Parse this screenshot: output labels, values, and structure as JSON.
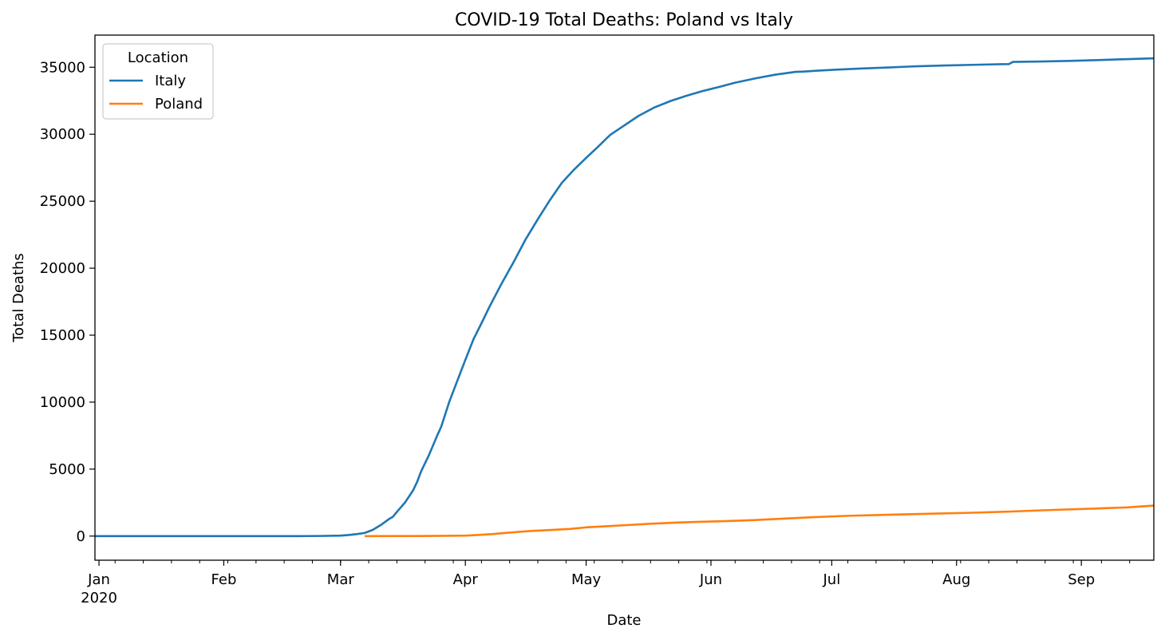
{
  "chart_data": {
    "type": "line",
    "title": "COVID-19 Total Deaths: Poland vs Italy",
    "xlabel": "Date",
    "ylabel": "Total Deaths",
    "xlim": [
      "2019-12-31",
      "2020-09-19"
    ],
    "ylim": [
      -1800,
      37400
    ],
    "grid": false,
    "legend": {
      "title": "Location",
      "placement": "top-left"
    },
    "x_ticks": [
      {
        "date": "2020-01-01",
        "label": "Jan",
        "sublabel": "2020"
      },
      {
        "date": "2020-02-01",
        "label": "Feb",
        "sublabel": ""
      },
      {
        "date": "2020-03-01",
        "label": "Mar",
        "sublabel": ""
      },
      {
        "date": "2020-04-01",
        "label": "Apr",
        "sublabel": ""
      },
      {
        "date": "2020-05-01",
        "label": "May",
        "sublabel": ""
      },
      {
        "date": "2020-06-01",
        "label": "Jun",
        "sublabel": ""
      },
      {
        "date": "2020-07-01",
        "label": "Jul",
        "sublabel": ""
      },
      {
        "date": "2020-08-01",
        "label": "Aug",
        "sublabel": ""
      },
      {
        "date": "2020-09-01",
        "label": "Sep",
        "sublabel": ""
      }
    ],
    "y_ticks": [
      0,
      5000,
      10000,
      15000,
      20000,
      25000,
      30000,
      35000
    ],
    "series": [
      {
        "name": "Italy",
        "color": "#1f77b4",
        "points": [
          [
            "2019-12-31",
            0
          ],
          [
            "2020-02-20",
            0
          ],
          [
            "2020-02-25",
            10
          ],
          [
            "2020-03-01",
            34
          ],
          [
            "2020-03-03",
            79
          ],
          [
            "2020-03-05",
            148
          ],
          [
            "2020-03-07",
            233
          ],
          [
            "2020-03-09",
            463
          ],
          [
            "2020-03-11",
            827
          ],
          [
            "2020-03-13",
            1266
          ],
          [
            "2020-03-14",
            1441
          ],
          [
            "2020-03-15",
            1809
          ],
          [
            "2020-03-17",
            2503
          ],
          [
            "2020-03-19",
            3405
          ],
          [
            "2020-03-20",
            4032
          ],
          [
            "2020-03-21",
            4825
          ],
          [
            "2020-03-23",
            6077
          ],
          [
            "2020-03-25",
            7503
          ],
          [
            "2020-03-26",
            8165
          ],
          [
            "2020-03-28",
            10023
          ],
          [
            "2020-03-30",
            11591
          ],
          [
            "2020-04-01",
            13155
          ],
          [
            "2020-04-03",
            14681
          ],
          [
            "2020-04-05",
            15887
          ],
          [
            "2020-04-07",
            17127
          ],
          [
            "2020-04-10",
            18849
          ],
          [
            "2020-04-13",
            20465
          ],
          [
            "2020-04-16",
            22170
          ],
          [
            "2020-04-19",
            23660
          ],
          [
            "2020-04-22",
            25085
          ],
          [
            "2020-04-25",
            26384
          ],
          [
            "2020-04-28",
            27359
          ],
          [
            "2020-05-01",
            28236
          ],
          [
            "2020-05-04",
            29079
          ],
          [
            "2020-05-07",
            29958
          ],
          [
            "2020-05-10",
            30560
          ],
          [
            "2020-05-14",
            31368
          ],
          [
            "2020-05-18",
            32007
          ],
          [
            "2020-05-22",
            32486
          ],
          [
            "2020-05-26",
            32877
          ],
          [
            "2020-05-30",
            33229
          ],
          [
            "2020-06-03",
            33530
          ],
          [
            "2020-06-07",
            33846
          ],
          [
            "2020-06-12",
            34167
          ],
          [
            "2020-06-17",
            34448
          ],
          [
            "2020-06-22",
            34657
          ],
          [
            "2020-06-24",
            34678
          ],
          [
            "2020-06-27",
            34738
          ],
          [
            "2020-07-02",
            34818
          ],
          [
            "2020-07-08",
            34899
          ],
          [
            "2020-07-15",
            34984
          ],
          [
            "2020-07-22",
            35073
          ],
          [
            "2020-07-29",
            35132
          ],
          [
            "2020-08-05",
            35181
          ],
          [
            "2020-08-12",
            35231
          ],
          [
            "2020-08-14",
            35234
          ],
          [
            "2020-08-15",
            35400
          ],
          [
            "2020-08-22",
            35430
          ],
          [
            "2020-08-29",
            35473
          ],
          [
            "2020-09-05",
            35534
          ],
          [
            "2020-09-12",
            35603
          ],
          [
            "2020-09-19",
            35668
          ]
        ]
      },
      {
        "name": "Poland",
        "color": "#ff7f0e",
        "points": [
          [
            "2020-03-07",
            0
          ],
          [
            "2020-03-20",
            5
          ],
          [
            "2020-03-27",
            23
          ],
          [
            "2020-04-01",
            33
          ],
          [
            "2020-04-04",
            79
          ],
          [
            "2020-04-08",
            153
          ],
          [
            "2020-04-12",
            263
          ],
          [
            "2020-04-17",
            380
          ],
          [
            "2020-04-22",
            455
          ],
          [
            "2020-04-27",
            535
          ],
          [
            "2020-05-01",
            651
          ],
          [
            "2020-05-06",
            734
          ],
          [
            "2020-05-12",
            836
          ],
          [
            "2020-05-17",
            920
          ],
          [
            "2020-05-23",
            1004
          ],
          [
            "2020-05-29",
            1064
          ],
          [
            "2020-06-05",
            1121
          ],
          [
            "2020-06-12",
            1200
          ],
          [
            "2020-06-19",
            1302
          ],
          [
            "2020-06-26",
            1406
          ],
          [
            "2020-07-05",
            1514
          ],
          [
            "2020-07-15",
            1594
          ],
          [
            "2020-07-25",
            1668
          ],
          [
            "2020-08-05",
            1745
          ],
          [
            "2020-08-15",
            1840
          ],
          [
            "2020-08-25",
            1953
          ],
          [
            "2020-09-05",
            2064
          ],
          [
            "2020-09-12",
            2138
          ],
          [
            "2020-09-19",
            2275
          ]
        ]
      }
    ]
  }
}
